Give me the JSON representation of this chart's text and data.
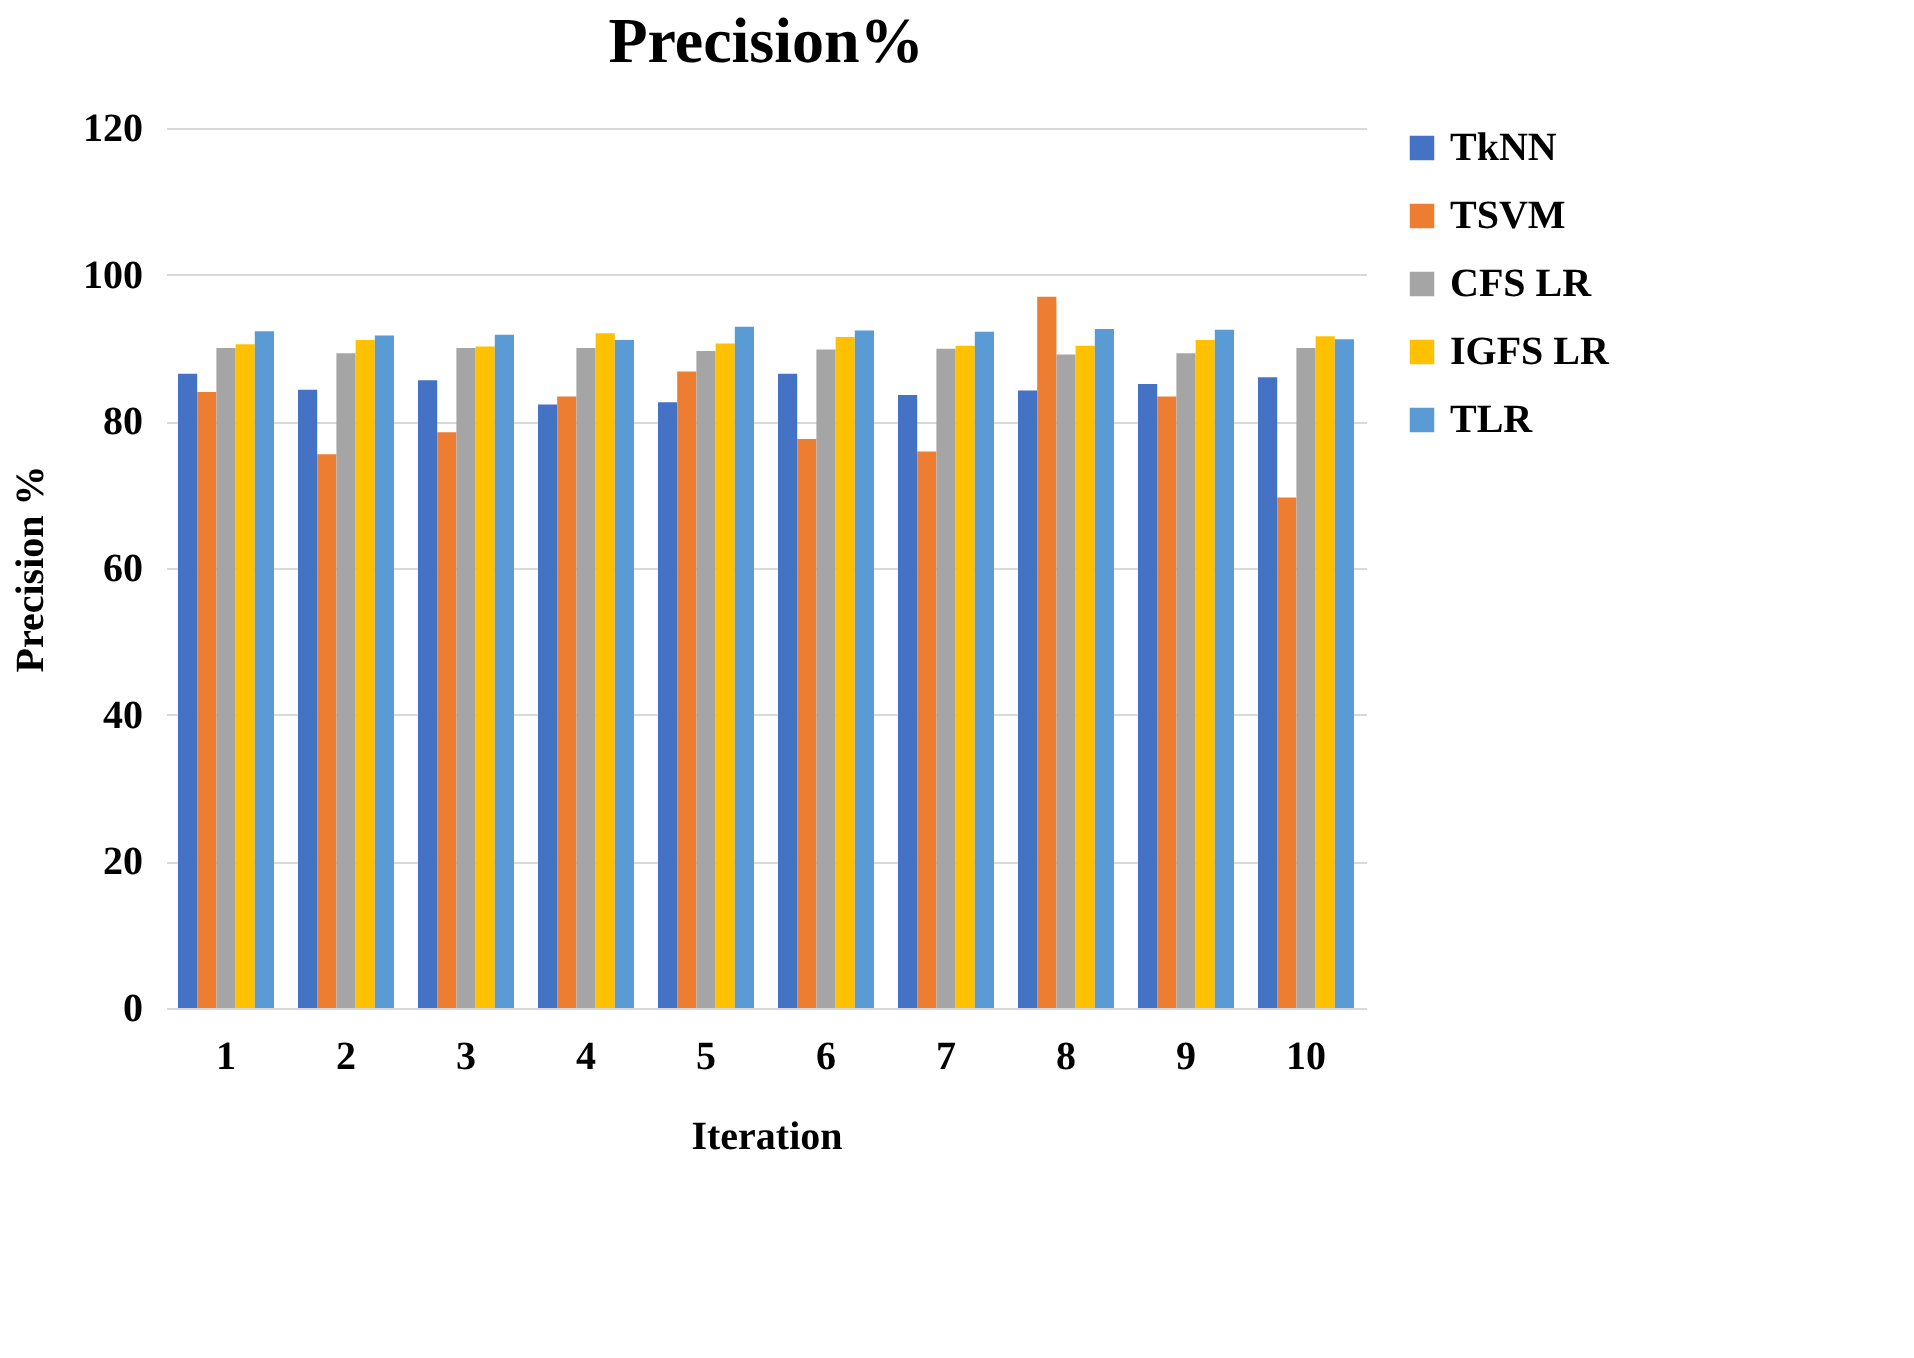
{
  "chart_data": {
    "type": "bar",
    "title": "Precision%",
    "xlabel": "Iteration",
    "ylabel": "Precision %",
    "categories": [
      "1",
      "2",
      "3",
      "4",
      "5",
      "6",
      "7",
      "8",
      "9",
      "10"
    ],
    "series": [
      {
        "name": "TkNN",
        "color": "#4472c4",
        "values": [
          86.5,
          84.3,
          85.6,
          82.3,
          82.6,
          86.5,
          83.6,
          84.2,
          85.1,
          86.0
        ]
      },
      {
        "name": "TSVM",
        "color": "#ed7d31",
        "values": [
          84.0,
          75.5,
          78.5,
          83.4,
          86.8,
          77.6,
          75.9,
          97.0,
          83.4,
          69.6
        ]
      },
      {
        "name": "CFS LR",
        "color": "#a5a5a5",
        "values": [
          90.0,
          89.3,
          90.0,
          90.0,
          89.6,
          89.8,
          89.9,
          89.1,
          89.3,
          90.0
        ]
      },
      {
        "name": "IGFS LR",
        "color": "#ffc000",
        "values": [
          90.5,
          91.1,
          90.2,
          92.0,
          90.6,
          91.5,
          90.3,
          90.3,
          91.1,
          91.6
        ]
      },
      {
        "name": "TLR",
        "color": "#5b9bd5",
        "values": [
          92.3,
          91.7,
          91.8,
          91.1,
          92.9,
          92.4,
          92.2,
          92.6,
          92.5,
          91.2
        ]
      }
    ],
    "ylim": [
      0,
      120
    ],
    "yticks": [
      0,
      20,
      40,
      60,
      80,
      100,
      120
    ],
    "grid": "y",
    "legend": "right"
  }
}
